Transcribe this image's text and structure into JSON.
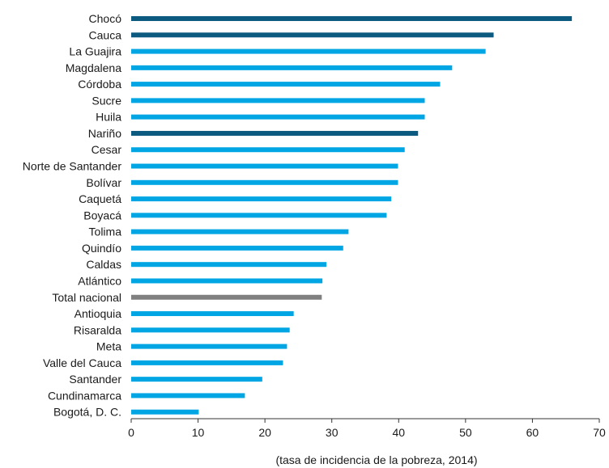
{
  "chart_data": {
    "type": "bar",
    "orientation": "horizontal",
    "xlabel": "(tasa de incidencia de la pobreza, 2014)",
    "xlim": [
      0,
      70
    ],
    "xticks": [
      0,
      10,
      20,
      30,
      40,
      50,
      60,
      70
    ],
    "grid": false,
    "categories": [
      "Chocó",
      "Cauca",
      "La Guajira",
      "Magdalena",
      "Córdoba",
      "Sucre",
      "Huila",
      "Nariño",
      "Cesar",
      "Norte de Santander",
      "Bolívar",
      "Caquetá",
      "Boyacá",
      "Tolima",
      "Quindío",
      "Caldas",
      "Atlántico",
      "Total nacional",
      "Antioquia",
      "Risaralda",
      "Meta",
      "Valle del Cauca",
      "Santander",
      "Cundinamarca",
      "Bogotá, D. C."
    ],
    "values": [
      65.9,
      54.2,
      53.0,
      48.0,
      46.2,
      43.9,
      43.9,
      42.9,
      40.9,
      39.9,
      39.9,
      38.9,
      38.2,
      32.5,
      31.7,
      29.2,
      28.6,
      28.5,
      24.3,
      23.7,
      23.3,
      22.7,
      19.6,
      17.0,
      10.1
    ],
    "bar_colors": [
      "#0d5a80",
      "#0d5a80",
      "#00a6e3",
      "#00a6e3",
      "#00a6e3",
      "#00a6e3",
      "#00a6e3",
      "#0d5a80",
      "#00a6e3",
      "#00a6e3",
      "#00a6e3",
      "#00a6e3",
      "#00a6e3",
      "#00a6e3",
      "#00a6e3",
      "#00a6e3",
      "#00a6e3",
      "#808080",
      "#00a6e3",
      "#00a6e3",
      "#00a6e3",
      "#00a6e3",
      "#00a6e3",
      "#00a6e3",
      "#00a6e3"
    ]
  }
}
